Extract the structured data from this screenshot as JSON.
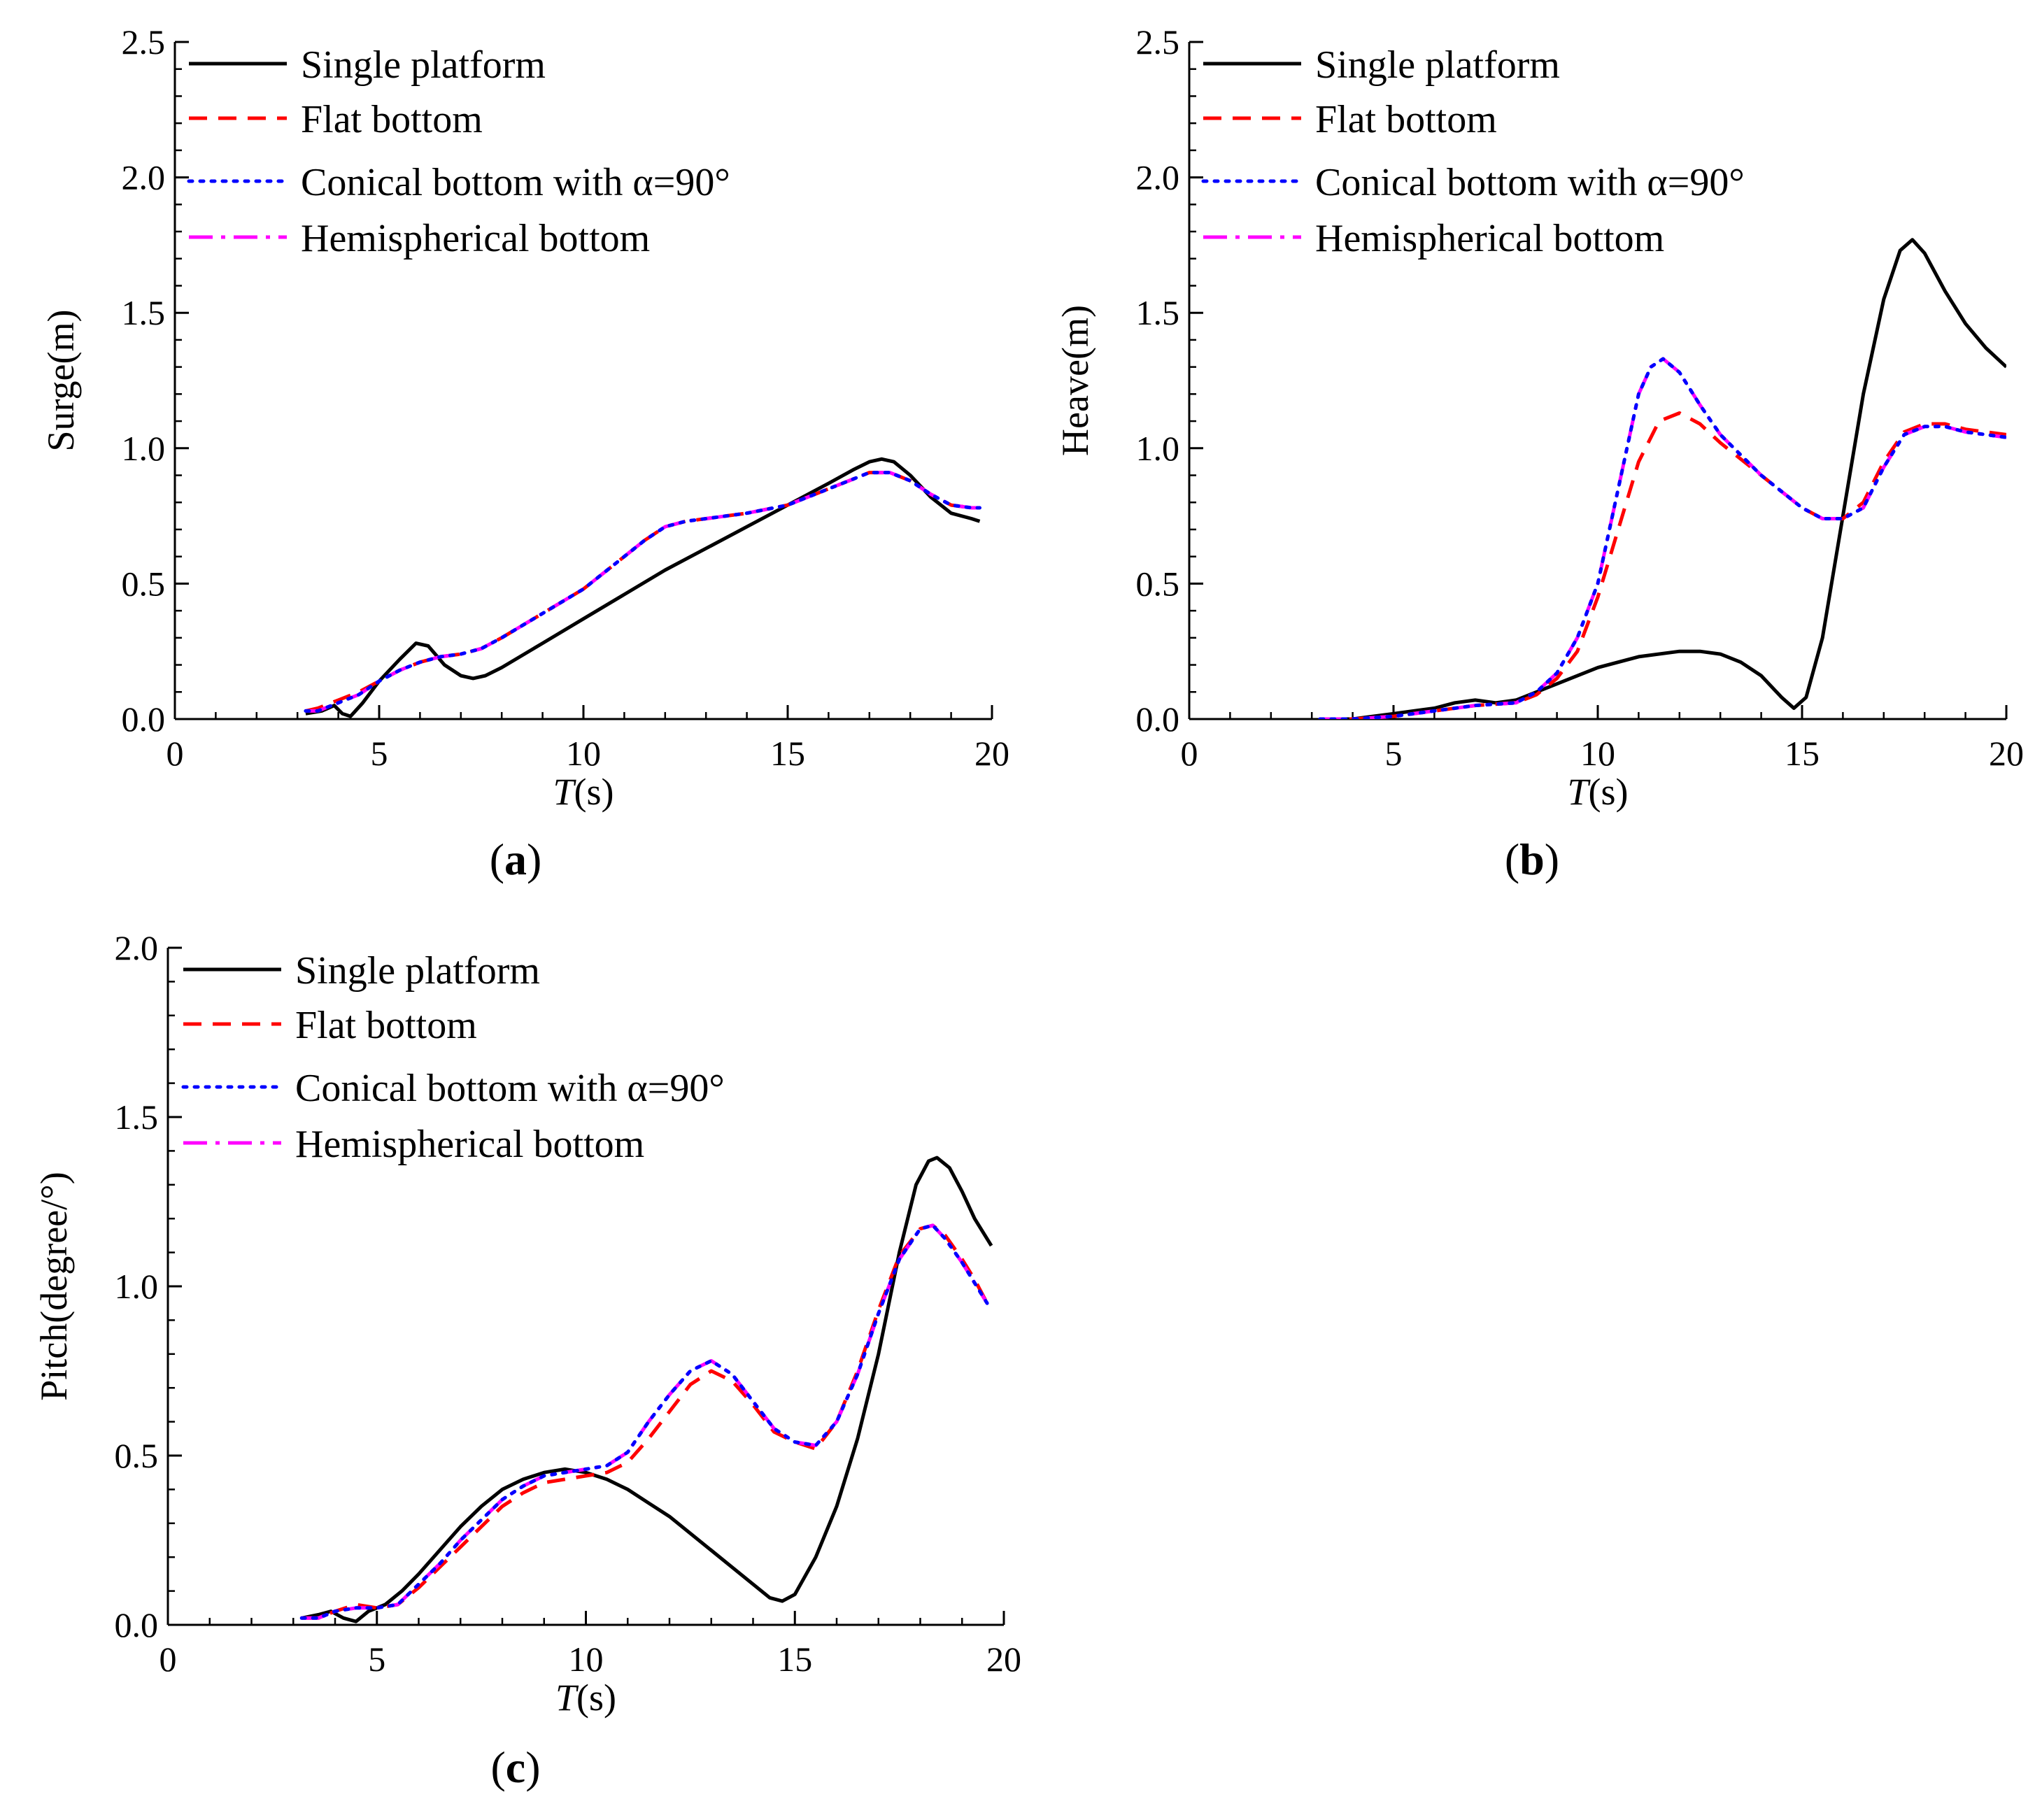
{
  "chart_data": [
    {
      "id": "a",
      "type": "line",
      "panel_label": "(a)",
      "panel_letter": "a",
      "xlabel_italic": "T",
      "xlabel_rest": "(s)",
      "ylabel": "Surge(m)",
      "xlim": [
        0,
        20
      ],
      "ylim": [
        0,
        2.5
      ],
      "xticks": [
        0,
        5,
        10,
        15,
        20
      ],
      "yticks": [
        0.0,
        0.5,
        1.0,
        1.5,
        2.0,
        2.5
      ],
      "xtick_labels": [
        "0",
        "5",
        "10",
        "15",
        "20"
      ],
      "ytick_labels": [
        "0.0",
        "0.5",
        "1.0",
        "1.5",
        "2.0",
        "2.5"
      ],
      "legend_position": "top-left",
      "legend": [
        "Single platform",
        "Flat bottom",
        "Conical bottom with α=90°",
        "Hemispherical bottom"
      ],
      "series": [
        {
          "name": "Single platform",
          "x": [
            3.2,
            3.6,
            3.9,
            4.1,
            4.3,
            4.6,
            5.0,
            5.5,
            5.9,
            6.2,
            6.6,
            7.0,
            7.3,
            7.6,
            8.0,
            9,
            10,
            11,
            12,
            13,
            14,
            15,
            16,
            16.6,
            17,
            17.3,
            17.6,
            18,
            18.5,
            19,
            19.5,
            19.7
          ],
          "y": [
            0.02,
            0.03,
            0.05,
            0.02,
            0.01,
            0.06,
            0.14,
            0.22,
            0.28,
            0.27,
            0.2,
            0.16,
            0.15,
            0.16,
            0.19,
            0.28,
            0.37,
            0.46,
            0.55,
            0.63,
            0.71,
            0.79,
            0.87,
            0.92,
            0.95,
            0.96,
            0.95,
            0.9,
            0.82,
            0.76,
            0.74,
            0.73
          ]
        },
        {
          "name": "Flat bottom",
          "x": [
            3.2,
            3.5,
            4,
            4.5,
            5,
            5.5,
            6,
            6.5,
            7,
            7.5,
            8,
            9,
            10,
            11,
            11.5,
            12,
            12.5,
            13,
            14,
            15,
            16,
            16.5,
            17,
            17.5,
            18,
            18.5,
            19,
            19.5,
            19.7
          ],
          "y": [
            0.03,
            0.04,
            0.07,
            0.1,
            0.14,
            0.18,
            0.21,
            0.23,
            0.24,
            0.26,
            0.3,
            0.39,
            0.48,
            0.6,
            0.66,
            0.71,
            0.73,
            0.74,
            0.76,
            0.79,
            0.85,
            0.88,
            0.91,
            0.91,
            0.88,
            0.83,
            0.79,
            0.78,
            0.78
          ]
        },
        {
          "name": "Conical bottom with α=90°",
          "x": [
            3.2,
            3.5,
            4,
            4.5,
            5,
            5.5,
            6,
            6.5,
            7,
            7.5,
            8,
            9,
            10,
            11,
            11.5,
            12,
            12.5,
            13,
            14,
            15,
            16,
            16.5,
            17,
            17.5,
            18,
            18.5,
            19,
            19.5,
            19.7
          ],
          "y": [
            0.03,
            0.03,
            0.06,
            0.09,
            0.14,
            0.18,
            0.21,
            0.23,
            0.24,
            0.26,
            0.3,
            0.39,
            0.48,
            0.6,
            0.66,
            0.71,
            0.73,
            0.74,
            0.76,
            0.79,
            0.85,
            0.88,
            0.91,
            0.91,
            0.88,
            0.83,
            0.79,
            0.78,
            0.78
          ]
        },
        {
          "name": "Hemispherical bottom",
          "x": [
            3.2,
            3.5,
            4,
            4.5,
            5,
            5.5,
            6,
            6.5,
            7,
            7.5,
            8,
            9,
            10,
            11,
            11.5,
            12,
            12.5,
            13,
            14,
            15,
            16,
            16.5,
            17,
            17.5,
            18,
            18.5,
            19,
            19.5,
            19.7
          ],
          "y": [
            0.03,
            0.03,
            0.06,
            0.09,
            0.14,
            0.18,
            0.21,
            0.23,
            0.24,
            0.26,
            0.3,
            0.39,
            0.48,
            0.6,
            0.66,
            0.71,
            0.73,
            0.74,
            0.76,
            0.79,
            0.85,
            0.88,
            0.91,
            0.91,
            0.88,
            0.83,
            0.79,
            0.78,
            0.78
          ]
        }
      ]
    },
    {
      "id": "b",
      "type": "line",
      "panel_label": "(b)",
      "panel_letter": "b",
      "xlabel_italic": "T",
      "xlabel_rest": "(s)",
      "ylabel": "Heave(m)",
      "xlim": [
        0,
        20
      ],
      "ylim": [
        0,
        2.5
      ],
      "xticks": [
        0,
        5,
        10,
        15,
        20
      ],
      "yticks": [
        0.0,
        0.5,
        1.0,
        1.5,
        2.0,
        2.5
      ],
      "xtick_labels": [
        "0",
        "5",
        "10",
        "15",
        "20"
      ],
      "ytick_labels": [
        "0.0",
        "0.5",
        "1.0",
        "1.5",
        "2.0",
        "2.5"
      ],
      "legend_position": "top-left",
      "legend": [
        "Single platform",
        "Flat bottom",
        "Conical bottom with α=90°",
        "Hemispherical bottom"
      ],
      "series": [
        {
          "name": "Single platform",
          "x": [
            3.2,
            4,
            4.5,
            5,
            5.5,
            6,
            6.5,
            7,
            7.5,
            8,
            9,
            10,
            11,
            12,
            12.5,
            13,
            13.5,
            14,
            14.5,
            14.8,
            15.1,
            15.5,
            16,
            16.5,
            17,
            17.4,
            17.7,
            18,
            18.5,
            19,
            19.5,
            20
          ],
          "y": [
            0.0,
            0.0,
            0.01,
            0.02,
            0.03,
            0.04,
            0.06,
            0.07,
            0.06,
            0.07,
            0.13,
            0.19,
            0.23,
            0.25,
            0.25,
            0.24,
            0.21,
            0.16,
            0.08,
            0.04,
            0.08,
            0.3,
            0.75,
            1.2,
            1.55,
            1.73,
            1.77,
            1.72,
            1.58,
            1.46,
            1.37,
            1.3
          ]
        },
        {
          "name": "Flat bottom",
          "x": [
            3.2,
            4,
            5,
            6,
            7,
            8,
            8.5,
            9,
            9.5,
            10,
            10.5,
            11,
            11.5,
            12,
            12.5,
            13,
            14,
            15,
            15.5,
            16,
            16.5,
            17,
            17.5,
            18,
            18.5,
            19,
            19.5,
            20
          ],
          "y": [
            0.0,
            0.0,
            0.01,
            0.03,
            0.05,
            0.06,
            0.09,
            0.15,
            0.25,
            0.45,
            0.7,
            0.95,
            1.1,
            1.13,
            1.09,
            1.02,
            0.9,
            0.78,
            0.74,
            0.74,
            0.8,
            0.95,
            1.06,
            1.09,
            1.09,
            1.07,
            1.06,
            1.05
          ]
        },
        {
          "name": "Conical bottom with α=90°",
          "x": [
            3.2,
            4,
            5,
            6,
            7,
            8,
            8.5,
            9,
            9.5,
            10,
            10.5,
            11,
            11.3,
            11.6,
            12,
            12.5,
            13,
            14,
            15,
            15.5,
            16,
            16.5,
            17,
            17.5,
            18,
            18.5,
            19,
            19.5,
            20
          ],
          "y": [
            0.0,
            0.0,
            0.01,
            0.03,
            0.05,
            0.06,
            0.1,
            0.17,
            0.3,
            0.5,
            0.85,
            1.2,
            1.3,
            1.33,
            1.28,
            1.16,
            1.05,
            0.9,
            0.78,
            0.74,
            0.74,
            0.78,
            0.93,
            1.05,
            1.08,
            1.08,
            1.06,
            1.05,
            1.04
          ]
        },
        {
          "name": "Hemispherical bottom",
          "x": [
            3.2,
            4,
            5,
            6,
            7,
            8,
            8.5,
            9,
            9.5,
            10,
            10.5,
            11,
            11.3,
            11.6,
            12,
            12.5,
            13,
            14,
            15,
            15.5,
            16,
            16.5,
            17,
            17.5,
            18,
            18.5,
            19,
            19.5,
            20
          ],
          "y": [
            0.0,
            0.0,
            0.01,
            0.03,
            0.05,
            0.06,
            0.1,
            0.17,
            0.3,
            0.5,
            0.85,
            1.2,
            1.3,
            1.33,
            1.28,
            1.16,
            1.05,
            0.9,
            0.78,
            0.74,
            0.74,
            0.78,
            0.93,
            1.05,
            1.08,
            1.08,
            1.06,
            1.05,
            1.04
          ]
        }
      ]
    },
    {
      "id": "c",
      "type": "line",
      "panel_label": "(c)",
      "panel_letter": "c",
      "xlabel_italic": "T",
      "xlabel_rest": "(s)",
      "ylabel": "Pitch(degree/°)",
      "xlim": [
        0,
        20
      ],
      "ylim": [
        0,
        2.0
      ],
      "xticks": [
        0,
        5,
        10,
        15,
        20
      ],
      "yticks": [
        0.0,
        0.5,
        1.0,
        1.5,
        2.0
      ],
      "xtick_labels": [
        "0",
        "5",
        "10",
        "15",
        "20"
      ],
      "ytick_labels": [
        "0.0",
        "0.5",
        "1.0",
        "1.5",
        "2.0"
      ],
      "legend_position": "top-left",
      "legend": [
        "Single platform",
        "Flat bottom",
        "Conical bottom with α=90°",
        "Hemispherical bottom"
      ],
      "series": [
        {
          "name": "Single platform",
          "x": [
            3.2,
            3.6,
            3.9,
            4.2,
            4.5,
            4.8,
            5.2,
            5.6,
            6,
            6.5,
            7,
            7.5,
            8,
            8.5,
            9,
            9.5,
            10,
            10.5,
            11,
            11.5,
            12,
            12.5,
            13,
            13.5,
            14,
            14.4,
            14.7,
            15,
            15.5,
            16,
            16.5,
            17,
            17.5,
            17.9,
            18.2,
            18.4,
            18.7,
            19,
            19.3,
            19.7
          ],
          "y": [
            0.02,
            0.03,
            0.04,
            0.02,
            0.01,
            0.04,
            0.06,
            0.1,
            0.15,
            0.22,
            0.29,
            0.35,
            0.4,
            0.43,
            0.45,
            0.46,
            0.45,
            0.43,
            0.4,
            0.36,
            0.32,
            0.27,
            0.22,
            0.17,
            0.12,
            0.08,
            0.07,
            0.09,
            0.2,
            0.35,
            0.55,
            0.8,
            1.1,
            1.3,
            1.37,
            1.38,
            1.35,
            1.28,
            1.2,
            1.12
          ]
        },
        {
          "name": "Flat bottom",
          "x": [
            3.2,
            3.6,
            4,
            4.5,
            5,
            5.5,
            6,
            6.5,
            7,
            7.5,
            8,
            8.5,
            9,
            9.5,
            10,
            10.5,
            11,
            11.5,
            12,
            12.5,
            13,
            13.5,
            14,
            14.5,
            15,
            15.5,
            16,
            16.5,
            17,
            17.5,
            18,
            18.3,
            18.6,
            19,
            19.3,
            19.6
          ],
          "y": [
            0.02,
            0.02,
            0.04,
            0.06,
            0.05,
            0.06,
            0.11,
            0.17,
            0.23,
            0.29,
            0.35,
            0.39,
            0.42,
            0.43,
            0.44,
            0.45,
            0.48,
            0.55,
            0.63,
            0.71,
            0.75,
            0.72,
            0.65,
            0.57,
            0.54,
            0.52,
            0.6,
            0.75,
            0.93,
            1.09,
            1.17,
            1.18,
            1.15,
            1.08,
            1.02,
            0.95
          ]
        },
        {
          "name": "Conical bottom with α=90°",
          "x": [
            3.2,
            3.6,
            4,
            4.5,
            5,
            5.5,
            6,
            6.5,
            7,
            7.5,
            8,
            8.5,
            9,
            9.5,
            10,
            10.5,
            11,
            11.5,
            12,
            12.5,
            13,
            13.5,
            14,
            14.5,
            15,
            15.5,
            16,
            16.5,
            17,
            17.5,
            18,
            18.3,
            18.6,
            19,
            19.3,
            19.6
          ],
          "y": [
            0.02,
            0.02,
            0.04,
            0.05,
            0.05,
            0.06,
            0.12,
            0.18,
            0.25,
            0.31,
            0.37,
            0.41,
            0.44,
            0.45,
            0.46,
            0.47,
            0.51,
            0.6,
            0.68,
            0.75,
            0.78,
            0.74,
            0.66,
            0.58,
            0.54,
            0.53,
            0.6,
            0.74,
            0.92,
            1.08,
            1.17,
            1.18,
            1.14,
            1.07,
            1.01,
            0.95
          ]
        },
        {
          "name": "Hemispherical bottom",
          "x": [
            3.2,
            3.6,
            4,
            4.5,
            5,
            5.5,
            6,
            6.5,
            7,
            7.5,
            8,
            8.5,
            9,
            9.5,
            10,
            10.5,
            11,
            11.5,
            12,
            12.5,
            13,
            13.5,
            14,
            14.5,
            15,
            15.5,
            16,
            16.5,
            17,
            17.5,
            18,
            18.3,
            18.6,
            19,
            19.3,
            19.6
          ],
          "y": [
            0.02,
            0.02,
            0.04,
            0.05,
            0.05,
            0.06,
            0.12,
            0.18,
            0.25,
            0.31,
            0.37,
            0.41,
            0.44,
            0.45,
            0.46,
            0.47,
            0.51,
            0.6,
            0.68,
            0.75,
            0.78,
            0.74,
            0.66,
            0.58,
            0.54,
            0.53,
            0.6,
            0.74,
            0.92,
            1.08,
            1.17,
            1.18,
            1.14,
            1.07,
            1.01,
            0.95
          ]
        }
      ]
    }
  ],
  "styles": {
    "Single platform": {
      "color": "#000000",
      "dash": "solid"
    },
    "Flat bottom": {
      "color": "#ff0000",
      "dash": "dash"
    },
    "Conical bottom with α=90°": {
      "color": "#0000ff",
      "dash": "dot"
    },
    "Hemispherical bottom": {
      "color": "#ff00ff",
      "dash": "dashdot"
    }
  }
}
